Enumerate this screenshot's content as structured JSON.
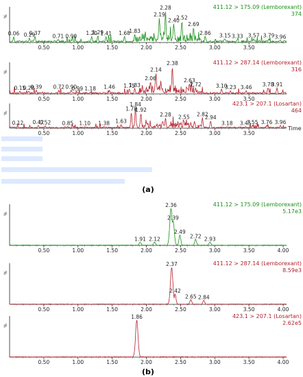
{
  "figure": {
    "panel_a_label": "(a)",
    "panel_b_label": "(b)",
    "axis_unit_label": "Time",
    "y_axis_label": "%",
    "colors": {
      "green": "#1a8f1a",
      "red": "#b3202a",
      "axis": "#222222",
      "text": "#222222",
      "blur": "#7aa2ff"
    }
  },
  "chart_data": [
    {
      "type": "line",
      "panel": "a",
      "title": "411.12 > 175.09 (Lemborexant)",
      "intensity": "374",
      "color": "green",
      "x_ticks": [
        "0.50",
        "1.00",
        "1.50",
        "2.00",
        "2.50",
        "3.00",
        "3.50"
      ],
      "xlim": [
        0.0,
        4.05
      ],
      "ylim": [
        0,
        100
      ],
      "peaks": [
        {
          "x": 0.06,
          "y": 18,
          "label": "0.06"
        },
        {
          "x": 0.29,
          "y": 14,
          "label": "0.29"
        },
        {
          "x": 0.37,
          "y": 20,
          "label": "0.37"
        },
        {
          "x": 0.71,
          "y": 10,
          "label": "0.71"
        },
        {
          "x": 0.9,
          "y": 10,
          "label": "0.90"
        },
        {
          "x": 1.2,
          "y": 20,
          "label": "1.20"
        },
        {
          "x": 1.29,
          "y": 22,
          "label": "1.29"
        },
        {
          "x": 1.41,
          "y": 18,
          "label": "1.41"
        },
        {
          "x": 1.68,
          "y": 20,
          "label": "1.68"
        },
        {
          "x": 1.83,
          "y": 26,
          "label": "1.83"
        },
        {
          "x": 2.19,
          "y": 78,
          "label": "2.19"
        },
        {
          "x": 2.28,
          "y": 100,
          "label": "2.28"
        },
        {
          "x": 2.4,
          "y": 60,
          "label": "2.40"
        },
        {
          "x": 2.52,
          "y": 68,
          "label": "2.52"
        },
        {
          "x": 2.69,
          "y": 48,
          "label": "2.69"
        },
        {
          "x": 2.86,
          "y": 20,
          "label": "2.86"
        },
        {
          "x": 3.15,
          "y": 12,
          "label": "3.15"
        },
        {
          "x": 3.33,
          "y": 10,
          "label": "3.33"
        },
        {
          "x": 3.57,
          "y": 12,
          "label": "3.57"
        },
        {
          "x": 3.79,
          "y": 12,
          "label": "3.79"
        },
        {
          "x": 3.96,
          "y": 8,
          "label": "3.96"
        }
      ]
    },
    {
      "type": "line",
      "panel": "a",
      "title": "411.12 > 287.14 (Lemborexant)",
      "intensity": "316",
      "color": "red",
      "x_ticks": [
        "0.50",
        "1.00",
        "1.50",
        "2.00",
        "2.50",
        "3.00",
        "3.50"
      ],
      "xlim": [
        0.0,
        4.05
      ],
      "ylim": [
        0,
        100
      ],
      "peaks": [
        {
          "x": 0.15,
          "y": 10,
          "label": "0.15"
        },
        {
          "x": 0.28,
          "y": 10,
          "label": "0.28"
        },
        {
          "x": 0.39,
          "y": 14,
          "label": "0.39"
        },
        {
          "x": 0.72,
          "y": 14,
          "label": "0.72"
        },
        {
          "x": 0.9,
          "y": 14,
          "label": "0.90"
        },
        {
          "x": 0.99,
          "y": 8,
          "label": "0.99"
        },
        {
          "x": 1.18,
          "y": 8,
          "label": "1.18"
        },
        {
          "x": 1.46,
          "y": 14,
          "label": "1.46"
        },
        {
          "x": 1.75,
          "y": 18,
          "label": "1.75"
        },
        {
          "x": 1.83,
          "y": 20,
          "label": "1.83"
        },
        {
          "x": 2.06,
          "y": 45,
          "label": "2.06"
        },
        {
          "x": 2.14,
          "y": 76,
          "label": "2.14"
        },
        {
          "x": 2.38,
          "y": 100,
          "label": "2.38"
        },
        {
          "x": 2.63,
          "y": 38,
          "label": "2.63"
        },
        {
          "x": 2.72,
          "y": 22,
          "label": "2.72"
        },
        {
          "x": 3.1,
          "y": 18,
          "label": "3.10"
        },
        {
          "x": 3.23,
          "y": 12,
          "label": "3.23"
        },
        {
          "x": 3.46,
          "y": 12,
          "label": "3.46"
        },
        {
          "x": 3.78,
          "y": 22,
          "label": "3.78"
        },
        {
          "x": 3.91,
          "y": 22,
          "label": "3.91"
        }
      ]
    },
    {
      "type": "line",
      "panel": "a",
      "title": "423.1 > 207.1 (Losartan)",
      "intensity": "464",
      "color": "red",
      "x_ticks": [
        "0.50",
        "1.00",
        "1.50",
        "2.00",
        "2.50",
        "3.00",
        "3.50"
      ],
      "xlim": [
        0.0,
        4.05
      ],
      "ylim": [
        0,
        100
      ],
      "peaks": [
        {
          "x": 0.12,
          "y": 10,
          "label": "0.12"
        },
        {
          "x": 0.42,
          "y": 14,
          "label": "0.42"
        },
        {
          "x": 0.52,
          "y": 12,
          "label": "0.52"
        },
        {
          "x": 0.85,
          "y": 8,
          "label": "0.85"
        },
        {
          "x": 1.1,
          "y": 8,
          "label": "1.10"
        },
        {
          "x": 1.38,
          "y": 8,
          "label": "1.38"
        },
        {
          "x": 1.63,
          "y": 18,
          "label": "1.63"
        },
        {
          "x": 1.78,
          "y": 78,
          "label": "1.78"
        },
        {
          "x": 1.84,
          "y": 100,
          "label": "1.84"
        },
        {
          "x": 1.92,
          "y": 74,
          "label": "1.92"
        },
        {
          "x": 2.28,
          "y": 50,
          "label": "2.28"
        },
        {
          "x": 2.55,
          "y": 38,
          "label": "2.55"
        },
        {
          "x": 2.82,
          "y": 52,
          "label": "2.82"
        },
        {
          "x": 2.94,
          "y": 36,
          "label": "2.94"
        },
        {
          "x": 3.18,
          "y": 8,
          "label": "3.18"
        },
        {
          "x": 3.45,
          "y": 8,
          "label": "3.45"
        },
        {
          "x": 3.55,
          "y": 14,
          "label": "3.55"
        },
        {
          "x": 3.76,
          "y": 14,
          "label": "3.76"
        },
        {
          "x": 3.96,
          "y": 14,
          "label": "3.96"
        }
      ]
    },
    {
      "type": "line",
      "panel": "b",
      "title": "411.12 > 175.09 (Lemborexant)",
      "intensity": "5.17e3",
      "color": "green",
      "x_ticks": [
        "0.50",
        "1.00",
        "1.50",
        "2.00",
        "2.50",
        "3.00",
        "3.50",
        "4.00"
      ],
      "xlim": [
        0.0,
        4.05
      ],
      "ylim": [
        0,
        100
      ],
      "peaks": [
        {
          "x": 1.91,
          "y": 8,
          "label": "1.91"
        },
        {
          "x": 2.12,
          "y": 8,
          "label": "2.12"
        },
        {
          "x": 2.36,
          "y": 100,
          "label": "2.36"
        },
        {
          "x": 2.39,
          "y": 66,
          "label": "2.39"
        },
        {
          "x": 2.49,
          "y": 28,
          "label": "2.49"
        },
        {
          "x": 2.72,
          "y": 16,
          "label": "2.72"
        },
        {
          "x": 2.93,
          "y": 8,
          "label": "2.93"
        }
      ]
    },
    {
      "type": "line",
      "panel": "b",
      "title": "411.12 > 287.14 (Lemborexant)",
      "intensity": "8.59e3",
      "color": "red",
      "x_ticks": [
        "0.50",
        "1.00",
        "1.50",
        "2.00",
        "2.50",
        "3.00",
        "3.50",
        "4.00"
      ],
      "xlim": [
        0.0,
        4.05
      ],
      "ylim": [
        0,
        100
      ],
      "peaks": [
        {
          "x": 2.37,
          "y": 100,
          "label": "2.37"
        },
        {
          "x": 2.42,
          "y": 28,
          "label": "2.42"
        },
        {
          "x": 2.65,
          "y": 12,
          "label": "2.65"
        },
        {
          "x": 2.84,
          "y": 10,
          "label": "2.84"
        }
      ]
    },
    {
      "type": "line",
      "panel": "b",
      "title": "423.1 > 207.1 (Losartan)",
      "intensity": "2.62e5",
      "color": "red",
      "x_ticks": [
        "0.50",
        "1.00",
        "1.50",
        "2.00",
        "2.50",
        "3.00",
        "3.50",
        "4.00"
      ],
      "xlim": [
        0.0,
        4.05
      ],
      "ylim": [
        0,
        100
      ],
      "peaks": [
        {
          "x": 1.86,
          "y": 100,
          "label": "1.86"
        }
      ]
    }
  ]
}
